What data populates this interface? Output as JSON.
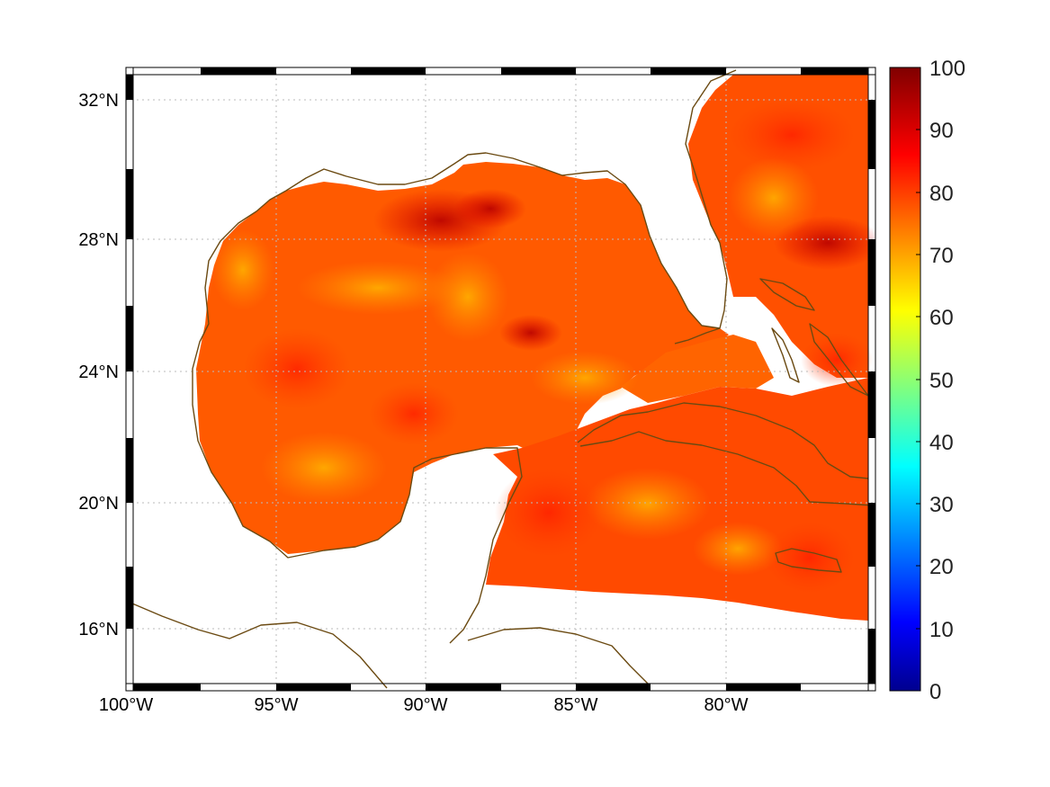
{
  "map": {
    "lon_labels": [
      "100°W",
      "95°W",
      "90°W",
      "85°W",
      "80°W"
    ],
    "lat_labels": [
      "32°N",
      "28°N",
      "24°N",
      "20°N",
      "16°N"
    ],
    "lon_range": [
      -100,
      -75
    ],
    "lat_range": [
      14.2,
      33
    ],
    "coastline_color": "#6b4a12",
    "land_color": "#ffffff",
    "gridlines": true
  },
  "colorbar": {
    "colormap": "jet",
    "range": [
      0,
      100
    ],
    "tick_labels": [
      "100",
      "90",
      "80",
      "70",
      "60",
      "50",
      "40",
      "30",
      "20",
      "10",
      "0"
    ]
  },
  "field": {
    "description_values_range": [
      70,
      100
    ],
    "dominant_value": 82
  }
}
